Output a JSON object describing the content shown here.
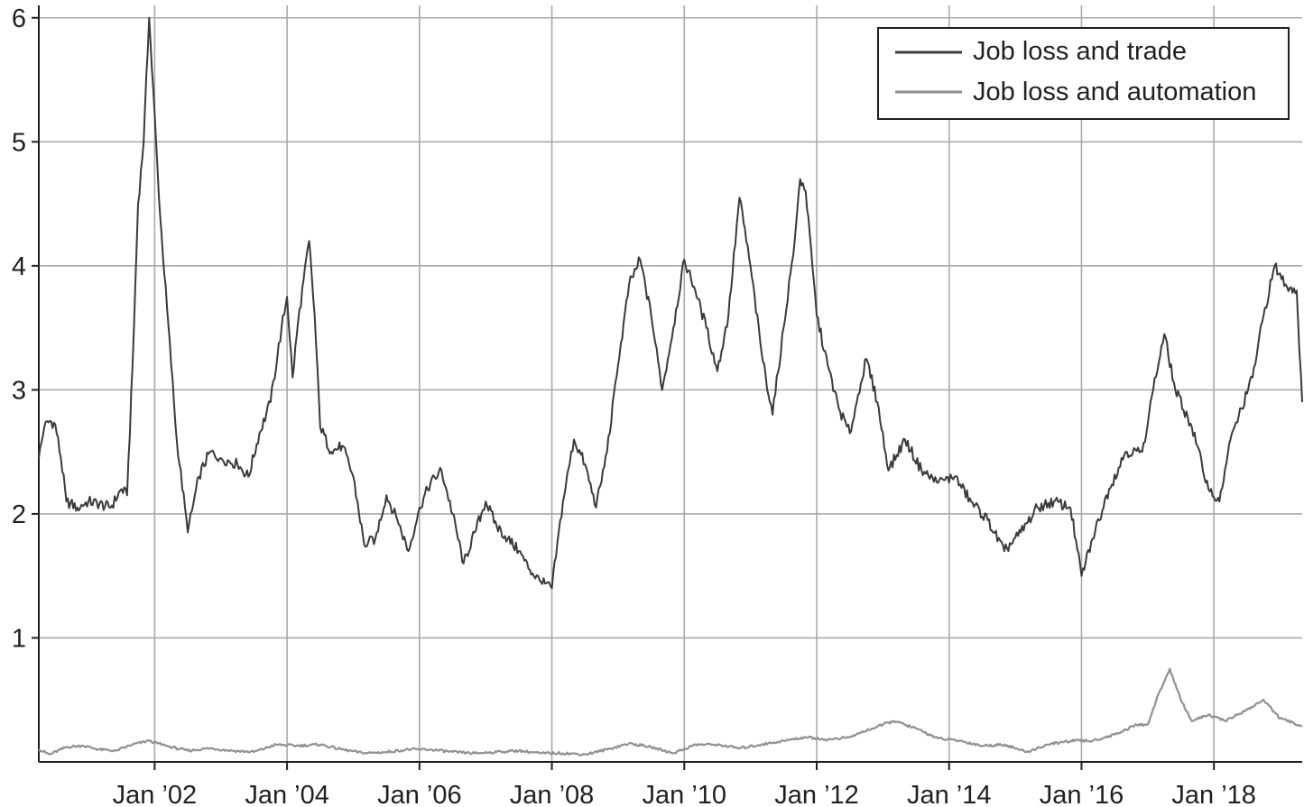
{
  "chart_data": {
    "type": "line",
    "title": "",
    "xlabel": "",
    "ylabel": "",
    "x_range": [
      "2000-04",
      "2019-05"
    ],
    "ylim": [
      0,
      6.1
    ],
    "grid": true,
    "legend_position": "top-right",
    "x_tick_labels": [
      "Jan ’02",
      "Jan ’04",
      "Jan ’06",
      "Jan ’08",
      "Jan ’10",
      "Jan ’12",
      "Jan ’14",
      "Jan ’16",
      "Jan ’18"
    ],
    "x_tick_dates": [
      "2002-01",
      "2004-01",
      "2006-01",
      "2008-01",
      "2010-01",
      "2012-01",
      "2014-01",
      "2016-01",
      "2018-01"
    ],
    "y_ticks": [
      1,
      2,
      3,
      4,
      5,
      6
    ],
    "series": [
      {
        "name": "Job loss and trade",
        "color": "#3a3a3a",
        "points": [
          [
            "2000-04",
            2.45
          ],
          [
            "2000-05",
            2.7
          ],
          [
            "2000-06",
            2.75
          ],
          [
            "2000-07",
            2.72
          ],
          [
            "2000-08",
            2.45
          ],
          [
            "2000-09",
            2.1
          ],
          [
            "2000-11",
            2.05
          ],
          [
            "2001-01",
            2.1
          ],
          [
            "2001-03",
            2.08
          ],
          [
            "2001-05",
            2.05
          ],
          [
            "2001-07",
            2.2
          ],
          [
            "2001-08",
            2.15
          ],
          [
            "2001-09",
            3.2
          ],
          [
            "2001-10",
            4.5
          ],
          [
            "2001-11",
            5.0
          ],
          [
            "2001-12",
            6.0
          ],
          [
            "2002-02",
            4.4
          ],
          [
            "2002-04",
            3.2
          ],
          [
            "2002-05",
            2.6
          ],
          [
            "2002-07",
            1.85
          ],
          [
            "2002-09",
            2.3
          ],
          [
            "2002-11",
            2.5
          ],
          [
            "2003-01",
            2.45
          ],
          [
            "2003-04",
            2.4
          ],
          [
            "2003-06",
            2.3
          ],
          [
            "2003-08",
            2.65
          ],
          [
            "2003-10",
            2.9
          ],
          [
            "2003-12",
            3.5
          ],
          [
            "2004-01",
            3.75
          ],
          [
            "2004-02",
            3.1
          ],
          [
            "2004-03",
            3.55
          ],
          [
            "2004-05",
            4.2
          ],
          [
            "2004-06",
            3.6
          ],
          [
            "2004-07",
            2.7
          ],
          [
            "2004-09",
            2.5
          ],
          [
            "2004-11",
            2.55
          ],
          [
            "2005-01",
            2.3
          ],
          [
            "2005-03",
            1.75
          ],
          [
            "2005-05",
            1.8
          ],
          [
            "2005-07",
            2.15
          ],
          [
            "2005-09",
            1.95
          ],
          [
            "2005-11",
            1.7
          ],
          [
            "2006-01",
            2.05
          ],
          [
            "2006-03",
            2.25
          ],
          [
            "2006-05",
            2.35
          ],
          [
            "2006-07",
            2.0
          ],
          [
            "2006-09",
            1.6
          ],
          [
            "2006-11",
            1.85
          ],
          [
            "2007-01",
            2.1
          ],
          [
            "2007-03",
            1.9
          ],
          [
            "2007-05",
            1.8
          ],
          [
            "2007-07",
            1.7
          ],
          [
            "2007-09",
            1.55
          ],
          [
            "2007-11",
            1.45
          ],
          [
            "2008-01",
            1.4
          ],
          [
            "2008-03",
            2.1
          ],
          [
            "2008-05",
            2.6
          ],
          [
            "2008-07",
            2.4
          ],
          [
            "2008-09",
            2.05
          ],
          [
            "2008-11",
            2.5
          ],
          [
            "2009-01",
            3.2
          ],
          [
            "2009-03",
            3.85
          ],
          [
            "2009-05",
            4.05
          ],
          [
            "2009-07",
            3.6
          ],
          [
            "2009-09",
            3.0
          ],
          [
            "2009-11",
            3.5
          ],
          [
            "2010-01",
            4.05
          ],
          [
            "2010-03",
            3.8
          ],
          [
            "2010-05",
            3.5
          ],
          [
            "2010-07",
            3.15
          ],
          [
            "2010-09",
            3.6
          ],
          [
            "2010-11",
            4.55
          ],
          [
            "2011-01",
            4.0
          ],
          [
            "2011-03",
            3.3
          ],
          [
            "2011-05",
            2.8
          ],
          [
            "2011-07",
            3.5
          ],
          [
            "2011-09",
            4.2
          ],
          [
            "2011-10",
            4.7
          ],
          [
            "2011-11",
            4.6
          ],
          [
            "2012-01",
            3.6
          ],
          [
            "2012-03",
            3.2
          ],
          [
            "2012-05",
            2.85
          ],
          [
            "2012-07",
            2.65
          ],
          [
            "2012-09",
            3.05
          ],
          [
            "2012-10",
            3.25
          ],
          [
            "2012-12",
            2.9
          ],
          [
            "2013-02",
            2.35
          ],
          [
            "2013-05",
            2.6
          ],
          [
            "2013-08",
            2.35
          ],
          [
            "2013-11",
            2.25
          ],
          [
            "2014-02",
            2.3
          ],
          [
            "2014-05",
            2.1
          ],
          [
            "2014-08",
            1.95
          ],
          [
            "2014-11",
            1.7
          ],
          [
            "2015-02",
            1.85
          ],
          [
            "2015-05",
            2.05
          ],
          [
            "2015-08",
            2.1
          ],
          [
            "2015-11",
            2.05
          ],
          [
            "2016-01",
            1.5
          ],
          [
            "2016-03",
            1.8
          ],
          [
            "2016-06",
            2.2
          ],
          [
            "2016-09",
            2.5
          ],
          [
            "2016-12",
            2.5
          ],
          [
            "2017-02",
            3.0
          ],
          [
            "2017-04",
            3.45
          ],
          [
            "2017-06",
            3.0
          ],
          [
            "2017-09",
            2.7
          ],
          [
            "2017-12",
            2.2
          ],
          [
            "2018-02",
            2.1
          ],
          [
            "2018-04",
            2.6
          ],
          [
            "2018-06",
            2.85
          ],
          [
            "2018-08",
            3.1
          ],
          [
            "2018-10",
            3.6
          ],
          [
            "2018-12",
            4.0
          ],
          [
            "2019-02",
            3.85
          ],
          [
            "2019-04",
            3.8
          ],
          [
            "2019-05",
            2.9
          ]
        ]
      },
      {
        "name": "Job loss and automation",
        "color": "#909090",
        "points": [
          [
            "2000-04",
            0.1
          ],
          [
            "2000-06",
            0.06
          ],
          [
            "2000-09",
            0.12
          ],
          [
            "2000-12",
            0.13
          ],
          [
            "2001-03",
            0.1
          ],
          [
            "2001-06",
            0.09
          ],
          [
            "2001-09",
            0.14
          ],
          [
            "2001-12",
            0.17
          ],
          [
            "2002-03",
            0.13
          ],
          [
            "2002-07",
            0.09
          ],
          [
            "2002-11",
            0.11
          ],
          [
            "2003-03",
            0.09
          ],
          [
            "2003-07",
            0.08
          ],
          [
            "2003-11",
            0.14
          ],
          [
            "2004-03",
            0.13
          ],
          [
            "2004-07",
            0.14
          ],
          [
            "2004-11",
            0.1
          ],
          [
            "2005-03",
            0.07
          ],
          [
            "2005-07",
            0.08
          ],
          [
            "2005-11",
            0.1
          ],
          [
            "2006-03",
            0.1
          ],
          [
            "2006-07",
            0.08
          ],
          [
            "2006-11",
            0.07
          ],
          [
            "2007-03",
            0.08
          ],
          [
            "2007-07",
            0.09
          ],
          [
            "2007-11",
            0.07
          ],
          [
            "2008-03",
            0.07
          ],
          [
            "2008-07",
            0.06
          ],
          [
            "2008-11",
            0.1
          ],
          [
            "2009-03",
            0.15
          ],
          [
            "2009-07",
            0.12
          ],
          [
            "2009-11",
            0.07
          ],
          [
            "2010-03",
            0.14
          ],
          [
            "2010-07",
            0.14
          ],
          [
            "2010-11",
            0.11
          ],
          [
            "2011-03",
            0.14
          ],
          [
            "2011-07",
            0.17
          ],
          [
            "2011-11",
            0.2
          ],
          [
            "2012-03",
            0.18
          ],
          [
            "2012-07",
            0.2
          ],
          [
            "2012-11",
            0.27
          ],
          [
            "2013-03",
            0.33
          ],
          [
            "2013-07",
            0.27
          ],
          [
            "2013-11",
            0.19
          ],
          [
            "2014-03",
            0.17
          ],
          [
            "2014-07",
            0.13
          ],
          [
            "2014-11",
            0.14
          ],
          [
            "2015-03",
            0.08
          ],
          [
            "2015-07",
            0.14
          ],
          [
            "2015-11",
            0.17
          ],
          [
            "2016-03",
            0.17
          ],
          [
            "2016-07",
            0.22
          ],
          [
            "2016-11",
            0.3
          ],
          [
            "2017-01",
            0.3
          ],
          [
            "2017-03",
            0.55
          ],
          [
            "2017-05",
            0.75
          ],
          [
            "2017-07",
            0.5
          ],
          [
            "2017-09",
            0.33
          ],
          [
            "2017-12",
            0.38
          ],
          [
            "2018-03",
            0.33
          ],
          [
            "2018-07",
            0.42
          ],
          [
            "2018-10",
            0.5
          ],
          [
            "2019-01",
            0.35
          ],
          [
            "2019-05",
            0.29
          ]
        ]
      }
    ]
  }
}
